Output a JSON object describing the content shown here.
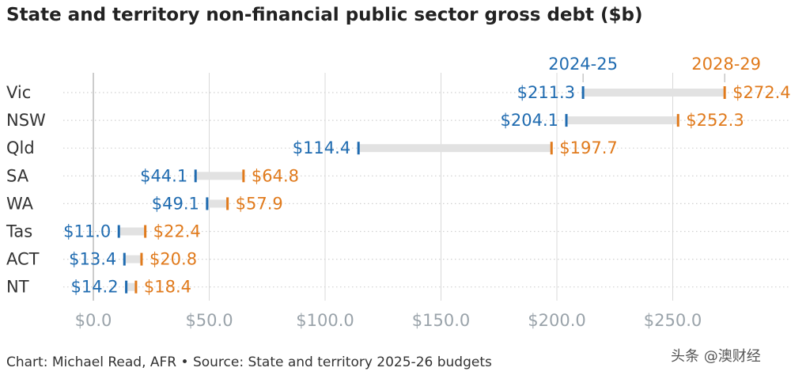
{
  "title": "State and territory non-financial public sector gross debt ($b)",
  "footer": "Chart: Michael Read, AFR • Source: State and territory 2025-26 budgets",
  "watermark": "头条 @澳财经",
  "colors": {
    "start": "#1f6bb0",
    "end": "#e07a1c",
    "connector": "#e2e2e2",
    "grid": "#d8d8d8",
    "zero_line": "#bbbbbb",
    "tick_label": "#9aa3aa"
  },
  "chart_data": {
    "type": "dumbbell",
    "title": "State and territory non-financial public sector gross debt ($b)",
    "categories": [
      "Vic",
      "NSW",
      "Qld",
      "SA",
      "WA",
      "Tas",
      "ACT",
      "NT"
    ],
    "series": [
      {
        "name": "2024-25",
        "values": [
          211.3,
          204.1,
          114.4,
          44.1,
          49.1,
          11.0,
          13.4,
          14.2
        ],
        "labels": [
          "$211.3",
          "$204.1",
          "$114.4",
          "$44.1",
          "$49.1",
          "$11.0",
          "$13.4",
          "$14.2"
        ]
      },
      {
        "name": "2028-29",
        "values": [
          272.4,
          252.3,
          197.7,
          64.8,
          57.9,
          22.4,
          20.8,
          18.4
        ],
        "labels": [
          "$272.4",
          "$252.3",
          "$197.7",
          "$64.8",
          "$57.9",
          "$22.4",
          "$20.8",
          "$18.4"
        ]
      }
    ],
    "x_ticks": [
      0,
      50,
      100,
      150,
      200,
      250
    ],
    "x_tick_labels": [
      "$0.0",
      "$50.0",
      "$100.0",
      "$150.0",
      "$200.0",
      "$250.0"
    ],
    "xlim": [
      0,
      300
    ],
    "grid": true
  }
}
